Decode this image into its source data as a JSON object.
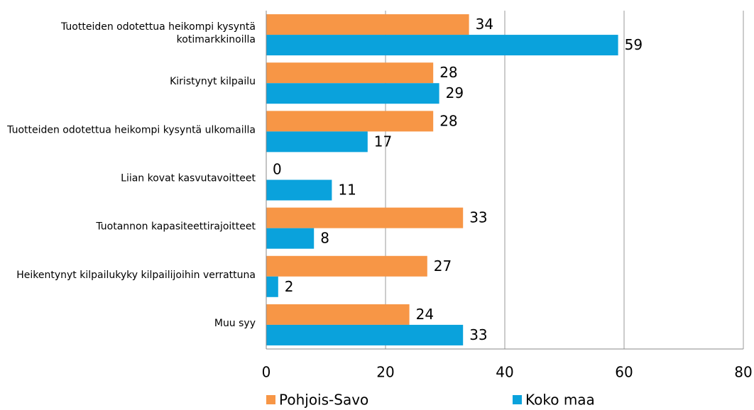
{
  "chart_data": {
    "type": "bar",
    "orientation": "horizontal",
    "categories": [
      "Tuotteiden odotettua heikompi kysyntä kotimarkkinoilla",
      "Kiristynyt kilpailu",
      "Tuotteiden odotettua heikompi kysyntä ulkomailla",
      "Liian kovat kasvutavoitteet",
      "Tuotannon kapasiteettirajoitteet",
      "Heikentynyt kilpailukyky kilpailijoihin verrattuna",
      "Muu syy"
    ],
    "series": [
      {
        "name": "Pohjois-Savo",
        "color": "#f79646",
        "values": [
          34,
          28,
          28,
          0,
          33,
          27,
          24
        ]
      },
      {
        "name": "Koko maa",
        "color": "#0aa2dc",
        "values": [
          59,
          29,
          17,
          11,
          8,
          2,
          33
        ]
      }
    ],
    "xlim": [
      0,
      80
    ],
    "xticks": [
      0,
      20,
      40,
      60,
      80
    ],
    "grid": true,
    "legend": "bottom"
  }
}
